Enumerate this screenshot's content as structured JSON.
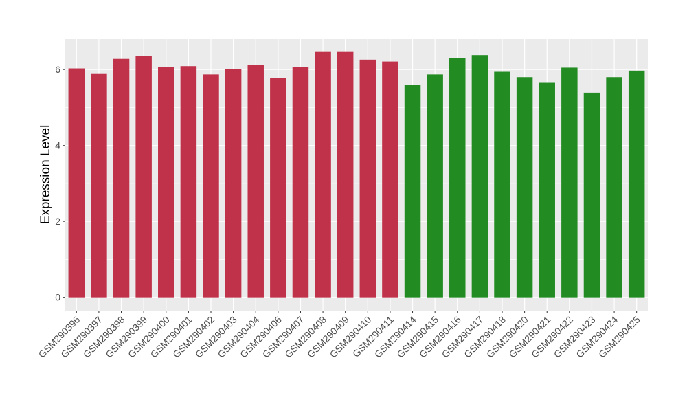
{
  "chart_data": {
    "type": "bar",
    "title": "",
    "xlabel": "",
    "ylabel": "Expression Level",
    "ylim": [
      -0.35,
      6.8
    ],
    "yticks": [
      0,
      2,
      4,
      6
    ],
    "grid": true,
    "legend": "none",
    "colors": {
      "group1": "#c0314a",
      "group2": "#228b22",
      "panel": "#ebebeb",
      "gridline": "#ffffff"
    },
    "categories": [
      "GSM290396",
      "GSM290397",
      "GSM290398",
      "GSM290399",
      "GSM290400",
      "GSM290401",
      "GSM290402",
      "GSM290403",
      "GSM290404",
      "GSM290406",
      "GSM290407",
      "GSM290408",
      "GSM290409",
      "GSM290410",
      "GSM290411",
      "GSM290414",
      "GSM290415",
      "GSM290416",
      "GSM290417",
      "GSM290418",
      "GSM290420",
      "GSM290421",
      "GSM290422",
      "GSM290423",
      "GSM290424",
      "GSM290425"
    ],
    "values": [
      6.03,
      5.9,
      6.28,
      6.36,
      6.07,
      6.09,
      5.87,
      6.02,
      6.12,
      5.77,
      6.06,
      6.48,
      6.48,
      6.26,
      6.21,
      5.59,
      5.87,
      6.3,
      6.38,
      5.94,
      5.8,
      5.65,
      6.05,
      5.39,
      5.8,
      5.97
    ],
    "groups": [
      1,
      1,
      1,
      1,
      1,
      1,
      1,
      1,
      1,
      1,
      1,
      1,
      1,
      1,
      1,
      2,
      2,
      2,
      2,
      2,
      2,
      2,
      2,
      2,
      2,
      2
    ]
  }
}
